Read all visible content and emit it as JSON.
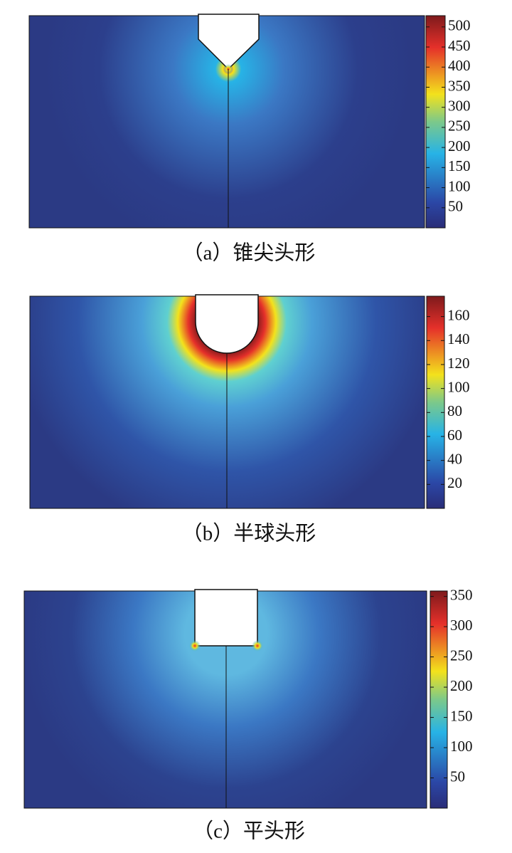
{
  "chart_data": [
    {
      "type": "heatmap",
      "caption": "（a）锥尖头形",
      "clim": [
        0,
        528
      ],
      "cticks": [
        50,
        100,
        150,
        200,
        250,
        300,
        350,
        400,
        450,
        500
      ]
    },
    {
      "type": "heatmap",
      "caption": "（b）半球头形",
      "clim": [
        0,
        177
      ],
      "cticks": [
        20,
        40,
        60,
        80,
        100,
        120,
        140,
        160
      ]
    },
    {
      "type": "heatmap",
      "caption": "（c）平头形",
      "clim": [
        0,
        359
      ],
      "cticks": [
        50,
        100,
        150,
        200,
        250,
        300,
        350
      ]
    }
  ]
}
